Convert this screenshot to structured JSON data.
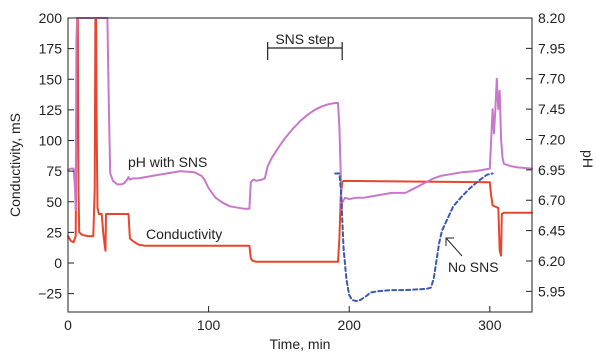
{
  "chart_data": {
    "type": "line",
    "xlabel": "Time, min",
    "ylabel_left": "Conductivity, mS",
    "ylabel_right": "pH",
    "xlim": [
      0,
      330
    ],
    "ylim_left": [
      -40,
      200
    ],
    "ylim_right": [
      5.78,
      8.2
    ],
    "x_ticks": [
      0,
      100,
      200,
      300
    ],
    "y_left_ticks": [
      -25,
      0,
      25,
      50,
      75,
      100,
      125,
      150,
      175,
      200
    ],
    "y_left_tick_labels": [
      "−25",
      "0",
      "25",
      "50",
      "75",
      "100",
      "125",
      "150",
      "175",
      "200"
    ],
    "y_right_ticks": [
      5.95,
      6.2,
      6.45,
      6.7,
      6.95,
      7.2,
      7.45,
      7.7,
      7.95,
      8.2
    ],
    "y_right_tick_labels": [
      "5.95",
      "6.20",
      "6.45",
      "6.70",
      "6.95",
      "7.20",
      "7.45",
      "7.70",
      "7.95",
      "8.20"
    ],
    "grid": false,
    "annotations": {
      "sns_step": {
        "label": "SNS step",
        "x_start": 142,
        "x_end": 195
      },
      "ph_with_sns": "pH with SNS",
      "conductivity": "Conductivity",
      "no_sns": "No SNS"
    },
    "series": [
      {
        "label": "Conductivity",
        "axis": "left",
        "color": "#e8452c",
        "style": "solid",
        "points": [
          [
            0,
            22
          ],
          [
            2,
            18
          ],
          [
            4,
            17
          ],
          [
            5.5,
            22
          ],
          [
            6,
            120
          ],
          [
            6.5,
            200
          ],
          [
            7,
            200
          ],
          [
            7.5,
            60
          ],
          [
            8,
            25
          ],
          [
            10,
            23
          ],
          [
            14,
            22
          ],
          [
            18,
            22
          ],
          [
            19,
            60
          ],
          [
            19.5,
            200
          ],
          [
            20,
            200
          ],
          [
            20.5,
            100
          ],
          [
            21,
            45
          ],
          [
            22,
            40
          ],
          [
            24,
            40
          ],
          [
            25,
            25
          ],
          [
            26,
            15
          ],
          [
            26.7,
            10
          ],
          [
            27,
            40
          ],
          [
            29,
            40
          ],
          [
            40,
            40
          ],
          [
            43,
            40
          ],
          [
            44,
            20
          ],
          [
            46,
            18
          ],
          [
            50,
            15
          ],
          [
            55,
            14
          ],
          [
            60,
            14
          ],
          [
            80,
            14
          ],
          [
            100,
            14
          ],
          [
            120,
            14
          ],
          [
            129,
            14
          ],
          [
            130,
            4
          ],
          [
            131,
            2
          ],
          [
            134,
            1
          ],
          [
            140,
            1
          ],
          [
            160,
            1
          ],
          [
            180,
            1
          ],
          [
            192,
            1
          ],
          [
            193,
            20
          ],
          [
            194,
            55
          ],
          [
            195,
            66
          ],
          [
            196,
            67
          ],
          [
            300,
            66
          ],
          [
            301,
            55
          ],
          [
            302,
            47
          ],
          [
            304,
            46
          ],
          [
            306,
            45
          ],
          [
            307,
            10
          ],
          [
            308,
            6
          ],
          [
            308.5,
            40
          ],
          [
            310,
            41
          ],
          [
            330,
            41
          ]
        ]
      },
      {
        "label": "pH with SNS",
        "axis": "right",
        "color": "#c878c8",
        "style": "solid",
        "points": [
          [
            0,
            6.95
          ],
          [
            2,
            6.96
          ],
          [
            4,
            6.96
          ],
          [
            5,
            6.8
          ],
          [
            5.5,
            6.62
          ],
          [
            6,
            8.0
          ],
          [
            6.5,
            8.2
          ],
          [
            7,
            8.2
          ],
          [
            19,
            8.2
          ],
          [
            20,
            8.2
          ],
          [
            28,
            8.2
          ],
          [
            29,
            7.5
          ],
          [
            30,
            6.92
          ],
          [
            32,
            6.86
          ],
          [
            35,
            6.83
          ],
          [
            38,
            6.83
          ],
          [
            40,
            6.84
          ],
          [
            42,
            6.87
          ],
          [
            43,
            6.89
          ],
          [
            44,
            6.87
          ],
          [
            46,
            6.88
          ],
          [
            50,
            6.88
          ],
          [
            60,
            6.9
          ],
          [
            70,
            6.92
          ],
          [
            80,
            6.94
          ],
          [
            90,
            6.93
          ],
          [
            95,
            6.9
          ],
          [
            97,
            6.87
          ],
          [
            100,
            6.8
          ],
          [
            105,
            6.72
          ],
          [
            110,
            6.68
          ],
          [
            115,
            6.65
          ],
          [
            125,
            6.63
          ],
          [
            129,
            6.63
          ],
          [
            130,
            6.85
          ],
          [
            132,
            6.87
          ],
          [
            134,
            6.86
          ],
          [
            138,
            6.87
          ],
          [
            140,
            6.88
          ],
          [
            142,
            6.98
          ],
          [
            145,
            7.05
          ],
          [
            150,
            7.14
          ],
          [
            155,
            7.22
          ],
          [
            160,
            7.29
          ],
          [
            165,
            7.35
          ],
          [
            170,
            7.4
          ],
          [
            175,
            7.44
          ],
          [
            180,
            7.47
          ],
          [
            185,
            7.49
          ],
          [
            190,
            7.5
          ],
          [
            192,
            7.5
          ],
          [
            193,
            7.3
          ],
          [
            194,
            6.9
          ],
          [
            194.5,
            6.6
          ],
          [
            195,
            6.68
          ],
          [
            197,
            6.72
          ],
          [
            200,
            6.71
          ],
          [
            205,
            6.72
          ],
          [
            210,
            6.72
          ],
          [
            220,
            6.74
          ],
          [
            230,
            6.76
          ],
          [
            240,
            6.76
          ],
          [
            245,
            6.79
          ],
          [
            250,
            6.82
          ],
          [
            255,
            6.85
          ],
          [
            260,
            6.88
          ],
          [
            265,
            6.9
          ],
          [
            270,
            6.91
          ],
          [
            280,
            6.93
          ],
          [
            290,
            6.94
          ],
          [
            300,
            6.96
          ],
          [
            301,
            7.2
          ],
          [
            302,
            7.45
          ],
          [
            303,
            7.25
          ],
          [
            304,
            7.45
          ],
          [
            305,
            7.7
          ],
          [
            306,
            7.45
          ],
          [
            307,
            7.6
          ],
          [
            308,
            7.2
          ],
          [
            309,
            7.05
          ],
          [
            310,
            7.0
          ],
          [
            315,
            6.98
          ],
          [
            320,
            6.97
          ],
          [
            330,
            6.96
          ]
        ]
      },
      {
        "label": "No SNS",
        "axis": "right",
        "color": "#3a5aad",
        "style": "dashed",
        "points": [
          [
            190,
            6.92
          ],
          [
            193,
            6.92
          ],
          [
            194,
            6.8
          ],
          [
            196,
            6.3
          ],
          [
            198,
            6.05
          ],
          [
            200,
            5.92
          ],
          [
            202,
            5.88
          ],
          [
            205,
            5.87
          ],
          [
            208,
            5.88
          ],
          [
            212,
            5.91
          ],
          [
            215,
            5.94
          ],
          [
            220,
            5.95
          ],
          [
            230,
            5.96
          ],
          [
            240,
            5.96
          ],
          [
            255,
            5.97
          ],
          [
            258,
            5.98
          ],
          [
            260,
            6.05
          ],
          [
            262,
            6.2
          ],
          [
            264,
            6.35
          ],
          [
            266,
            6.45
          ],
          [
            270,
            6.55
          ],
          [
            274,
            6.65
          ],
          [
            280,
            6.73
          ],
          [
            286,
            6.8
          ],
          [
            292,
            6.86
          ],
          [
            298,
            6.91
          ],
          [
            302,
            6.92
          ]
        ]
      }
    ]
  }
}
